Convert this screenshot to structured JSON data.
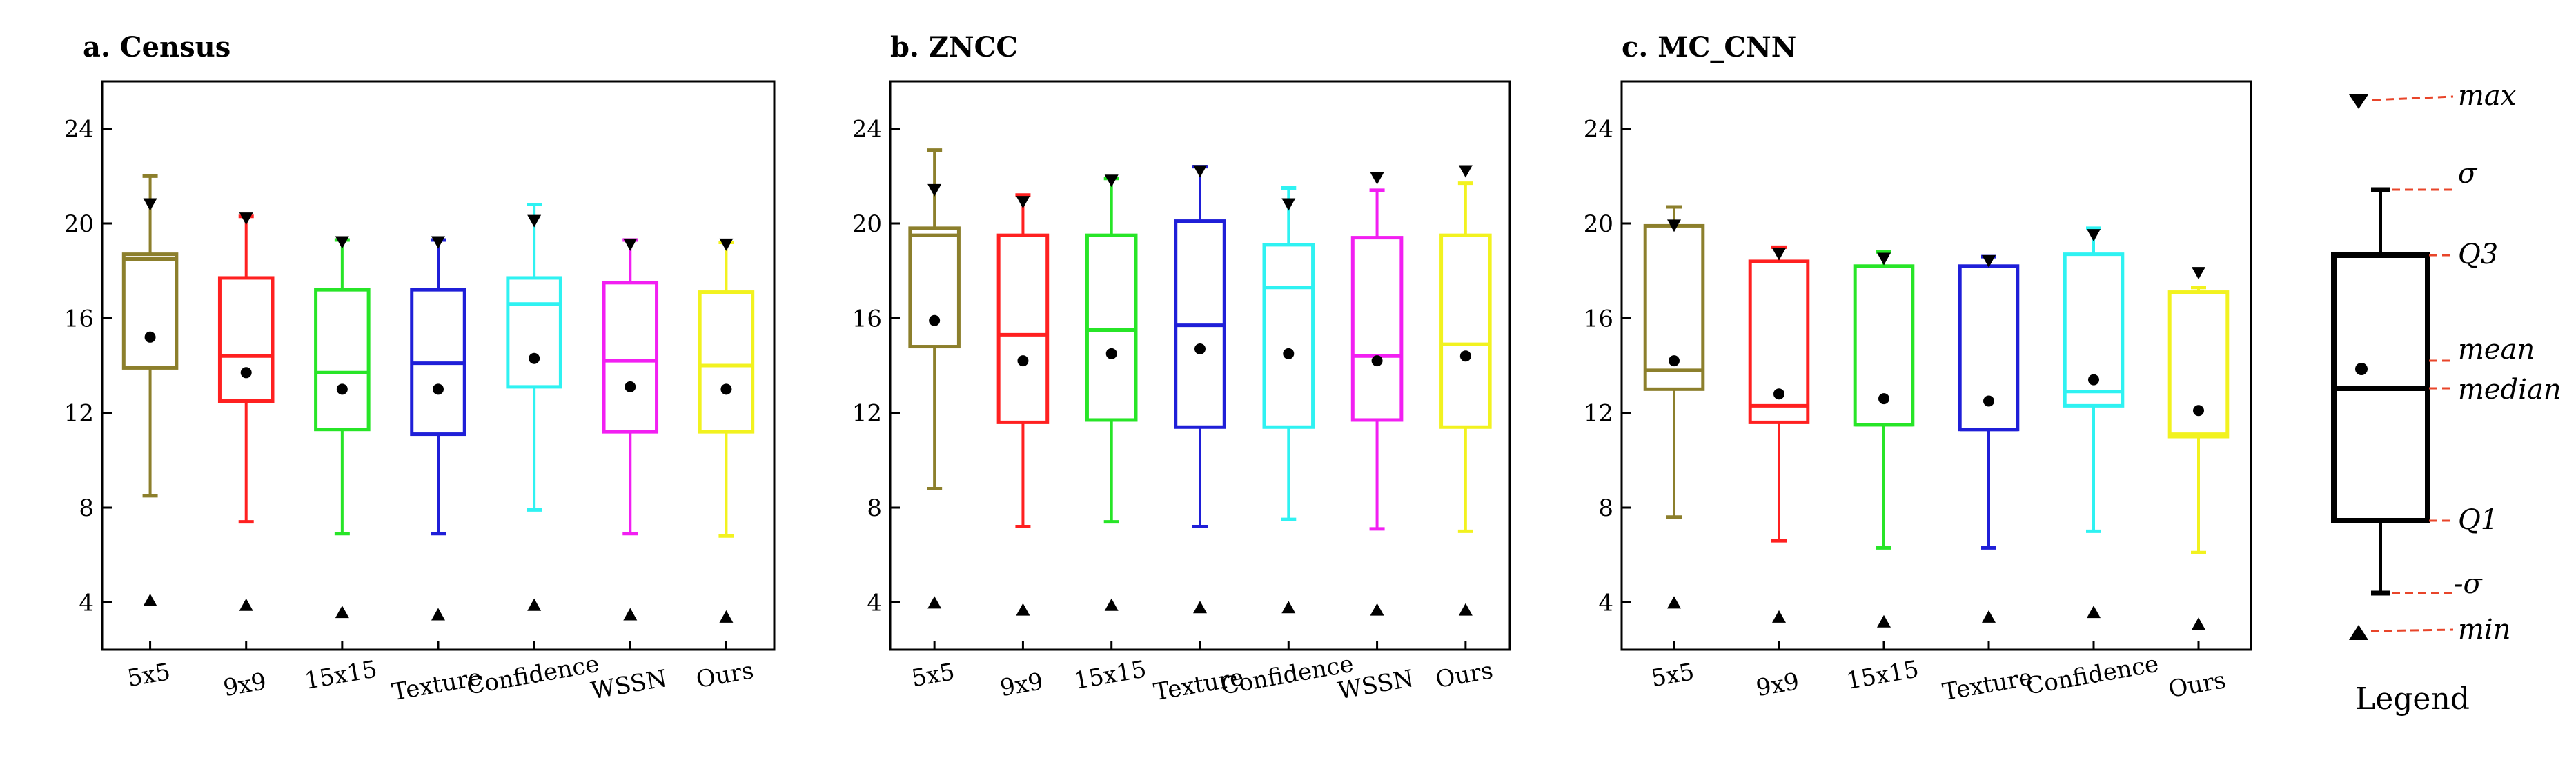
{
  "chart_data": [
    {
      "type": "boxplot",
      "title": "a. Census",
      "ylim": [
        2,
        26
      ],
      "yticks": [
        4,
        8,
        12,
        16,
        20,
        24
      ],
      "ytick_labels": [
        "4",
        "8",
        "12",
        "16",
        "20",
        "24"
      ],
      "categories": [
        "5x5",
        "9x9",
        "15x15",
        "Texture",
        "Confidence",
        "WSSN",
        "Ours"
      ],
      "colors": [
        "#8c7f2c",
        "#ff2020",
        "#27e527",
        "#1f1fd8",
        "#2ff2f2",
        "#f21ff2",
        "#f2f21f"
      ],
      "boxes": [
        {
          "max": 20.8,
          "sigma_hi": 22.0,
          "q3": 18.7,
          "median": 18.5,
          "mean": 15.2,
          "q1": 13.9,
          "sigma_lo": 8.5,
          "min": 4.1
        },
        {
          "max": 20.2,
          "sigma_hi": 20.3,
          "q3": 17.7,
          "median": 14.4,
          "mean": 13.7,
          "q1": 12.5,
          "sigma_lo": 7.4,
          "min": 3.9
        },
        {
          "max": 19.2,
          "sigma_hi": 19.3,
          "q3": 17.2,
          "median": 13.7,
          "mean": 13.0,
          "q1": 11.3,
          "sigma_lo": 6.9,
          "min": 3.6
        },
        {
          "max": 19.2,
          "sigma_hi": 19.3,
          "q3": 17.2,
          "median": 14.1,
          "mean": 13.0,
          "q1": 11.1,
          "sigma_lo": 6.9,
          "min": 3.5
        },
        {
          "max": 20.1,
          "sigma_hi": 20.8,
          "q3": 17.7,
          "median": 16.6,
          "mean": 14.3,
          "q1": 13.1,
          "sigma_lo": 7.9,
          "min": 3.9
        },
        {
          "max": 19.1,
          "sigma_hi": 19.3,
          "q3": 17.5,
          "median": 14.2,
          "mean": 13.1,
          "q1": 11.2,
          "sigma_lo": 6.9,
          "min": 3.5
        },
        {
          "max": 19.1,
          "sigma_hi": 19.2,
          "q3": 17.1,
          "median": 14.0,
          "mean": 13.0,
          "q1": 11.2,
          "sigma_lo": 6.8,
          "min": 3.4
        }
      ]
    },
    {
      "type": "boxplot",
      "title": "b. ZNCC",
      "ylim": [
        2,
        26
      ],
      "yticks": [
        4,
        8,
        12,
        16,
        20,
        24
      ],
      "ytick_labels": [
        "4",
        "8",
        "12",
        "16",
        "20",
        "24"
      ],
      "categories": [
        "5x5",
        "9x9",
        "15x15",
        "Texture",
        "Confidence",
        "WSSN",
        "Ours"
      ],
      "colors": [
        "#8c7f2c",
        "#ff2020",
        "#27e527",
        "#1f1fd8",
        "#2ff2f2",
        "#f21ff2",
        "#f2f21f"
      ],
      "boxes": [
        {
          "max": 21.4,
          "sigma_hi": 23.1,
          "q3": 19.8,
          "median": 19.5,
          "mean": 15.9,
          "q1": 14.8,
          "sigma_lo": 8.8,
          "min": 4.0
        },
        {
          "max": 20.9,
          "sigma_hi": 21.2,
          "q3": 19.5,
          "median": 15.3,
          "mean": 14.2,
          "q1": 11.6,
          "sigma_lo": 7.2,
          "min": 3.7
        },
        {
          "max": 21.8,
          "sigma_hi": 21.9,
          "q3": 19.5,
          "median": 15.5,
          "mean": 14.5,
          "q1": 11.7,
          "sigma_lo": 7.4,
          "min": 3.9
        },
        {
          "max": 22.2,
          "sigma_hi": 22.4,
          "q3": 20.1,
          "median": 15.7,
          "mean": 14.7,
          "q1": 11.4,
          "sigma_lo": 7.2,
          "min": 3.8
        },
        {
          "max": 20.8,
          "sigma_hi": 21.5,
          "q3": 19.1,
          "median": 17.3,
          "mean": 14.5,
          "q1": 11.4,
          "sigma_lo": 7.5,
          "min": 3.8
        },
        {
          "max": 21.9,
          "sigma_hi": 21.4,
          "q3": 19.4,
          "median": 14.4,
          "mean": 14.2,
          "q1": 11.7,
          "sigma_lo": 7.1,
          "min": 3.7
        },
        {
          "max": 22.2,
          "sigma_hi": 21.7,
          "q3": 19.5,
          "median": 14.9,
          "mean": 14.4,
          "q1": 11.4,
          "sigma_lo": 7.0,
          "min": 3.7
        }
      ]
    },
    {
      "type": "boxplot",
      "title": "c. MC_CNN",
      "ylim": [
        2,
        26
      ],
      "yticks": [
        4,
        8,
        12,
        16,
        20,
        24
      ],
      "ytick_labels": [
        "4",
        "8",
        "12",
        "16",
        "20",
        "24"
      ],
      "categories": [
        "5x5",
        "9x9",
        "15x15",
        "Texture",
        "Confidence",
        "Ours"
      ],
      "colors": [
        "#8c7f2c",
        "#ff2020",
        "#27e527",
        "#1f1fd8",
        "#2ff2f2",
        "#f2f21f"
      ],
      "boxes": [
        {
          "max": 19.9,
          "sigma_hi": 20.7,
          "q3": 19.9,
          "median": 13.8,
          "mean": 14.2,
          "q1": 13.0,
          "sigma_lo": 7.6,
          "min": 4.0
        },
        {
          "max": 18.7,
          "sigma_hi": 19.0,
          "q3": 18.4,
          "median": 12.3,
          "mean": 12.8,
          "q1": 11.6,
          "sigma_lo": 6.6,
          "min": 3.4
        },
        {
          "max": 18.5,
          "sigma_hi": 18.8,
          "q3": 18.2,
          "median": 11.5,
          "mean": 12.6,
          "q1": 11.5,
          "sigma_lo": 6.3,
          "min": 3.2
        },
        {
          "max": 18.4,
          "sigma_hi": 18.6,
          "q3": 18.2,
          "median": 11.3,
          "mean": 12.5,
          "q1": 11.3,
          "sigma_lo": 6.3,
          "min": 3.4
        },
        {
          "max": 19.5,
          "sigma_hi": 19.8,
          "q3": 18.7,
          "median": 12.9,
          "mean": 13.4,
          "q1": 12.3,
          "sigma_lo": 7.0,
          "min": 3.6
        },
        {
          "max": 17.9,
          "sigma_hi": 17.3,
          "q3": 17.1,
          "median": 11.1,
          "mean": 12.1,
          "q1": 11.0,
          "sigma_lo": 6.1,
          "min": 3.1
        }
      ]
    }
  ],
  "legend": {
    "title": "Legend",
    "labels": {
      "max": "max",
      "sigma": "σ",
      "q3": "Q3",
      "mean": "mean",
      "median": "median",
      "q1": "Q1",
      "neg_sigma": "-σ",
      "min": "min"
    },
    "leader_color": "#e8452a"
  }
}
